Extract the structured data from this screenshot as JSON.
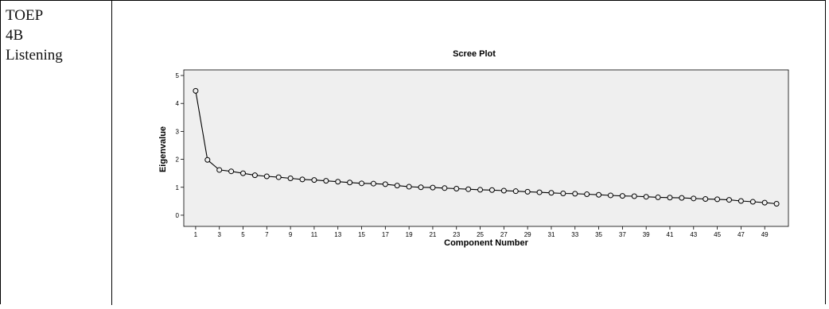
{
  "table": {
    "label_lines": [
      "TOEP",
      "4B",
      "Listening"
    ]
  },
  "chart_data": {
    "type": "line",
    "title": "Scree Plot",
    "xlabel": "Component Number",
    "ylabel": "Eigenvalue",
    "xlim": [
      0,
      51
    ],
    "ylim": [
      -0.4,
      5.2
    ],
    "yticks": [
      0,
      1,
      2,
      3,
      4,
      5
    ],
    "xticks": [
      1,
      3,
      5,
      7,
      9,
      11,
      13,
      15,
      17,
      19,
      21,
      23,
      25,
      27,
      29,
      31,
      33,
      35,
      37,
      39,
      41,
      43,
      45,
      47,
      49
    ],
    "plot_background": "#efefef",
    "line_color": "#000000",
    "marker": "open-circle",
    "x": [
      1,
      2,
      3,
      4,
      5,
      6,
      7,
      8,
      9,
      10,
      11,
      12,
      13,
      14,
      15,
      16,
      17,
      18,
      19,
      20,
      21,
      22,
      23,
      24,
      25,
      26,
      27,
      28,
      29,
      30,
      31,
      32,
      33,
      34,
      35,
      36,
      37,
      38,
      39,
      40,
      41,
      42,
      43,
      44,
      45,
      46,
      47,
      48,
      49,
      50
    ],
    "values": [
      4.45,
      1.98,
      1.62,
      1.57,
      1.5,
      1.43,
      1.39,
      1.36,
      1.32,
      1.28,
      1.26,
      1.23,
      1.2,
      1.17,
      1.14,
      1.13,
      1.11,
      1.06,
      1.02,
      1.0,
      0.99,
      0.97,
      0.95,
      0.93,
      0.91,
      0.9,
      0.88,
      0.86,
      0.84,
      0.82,
      0.8,
      0.78,
      0.77,
      0.75,
      0.73,
      0.71,
      0.69,
      0.68,
      0.66,
      0.64,
      0.63,
      0.62,
      0.6,
      0.58,
      0.57,
      0.55,
      0.51,
      0.48,
      0.45,
      0.41
    ]
  }
}
